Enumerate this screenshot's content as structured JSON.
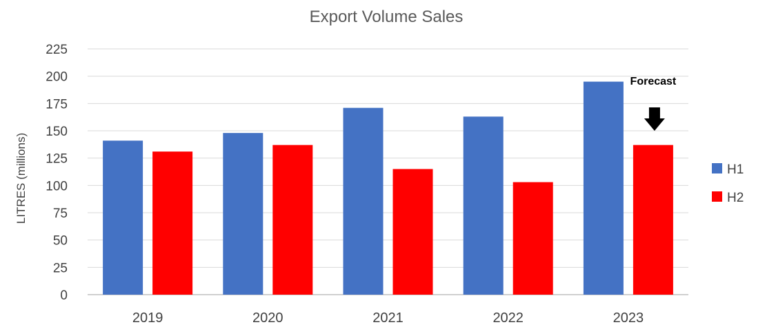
{
  "chart_data": {
    "type": "bar",
    "title": "Export Volume Sales",
    "xlabel": "",
    "ylabel": "LITRES (millions)",
    "categories": [
      "2019",
      "2020",
      "2021",
      "2022",
      "2023"
    ],
    "series": [
      {
        "name": "H1",
        "color": "#4472C4",
        "values": [
          141,
          148,
          171,
          163,
          195
        ]
      },
      {
        "name": "H2",
        "color": "#FF0000",
        "values": [
          131,
          137,
          115,
          103,
          137
        ]
      }
    ],
    "ylim": [
      0,
      225
    ],
    "yticks": [
      "0",
      "25",
      "50",
      "75",
      "100",
      "125",
      "150",
      "175",
      "200",
      "225"
    ],
    "grid": true,
    "legend_position": "right",
    "annotation": {
      "text": "Forecast",
      "category": "2023",
      "series": "H2",
      "icon": "down-arrow-icon"
    }
  }
}
